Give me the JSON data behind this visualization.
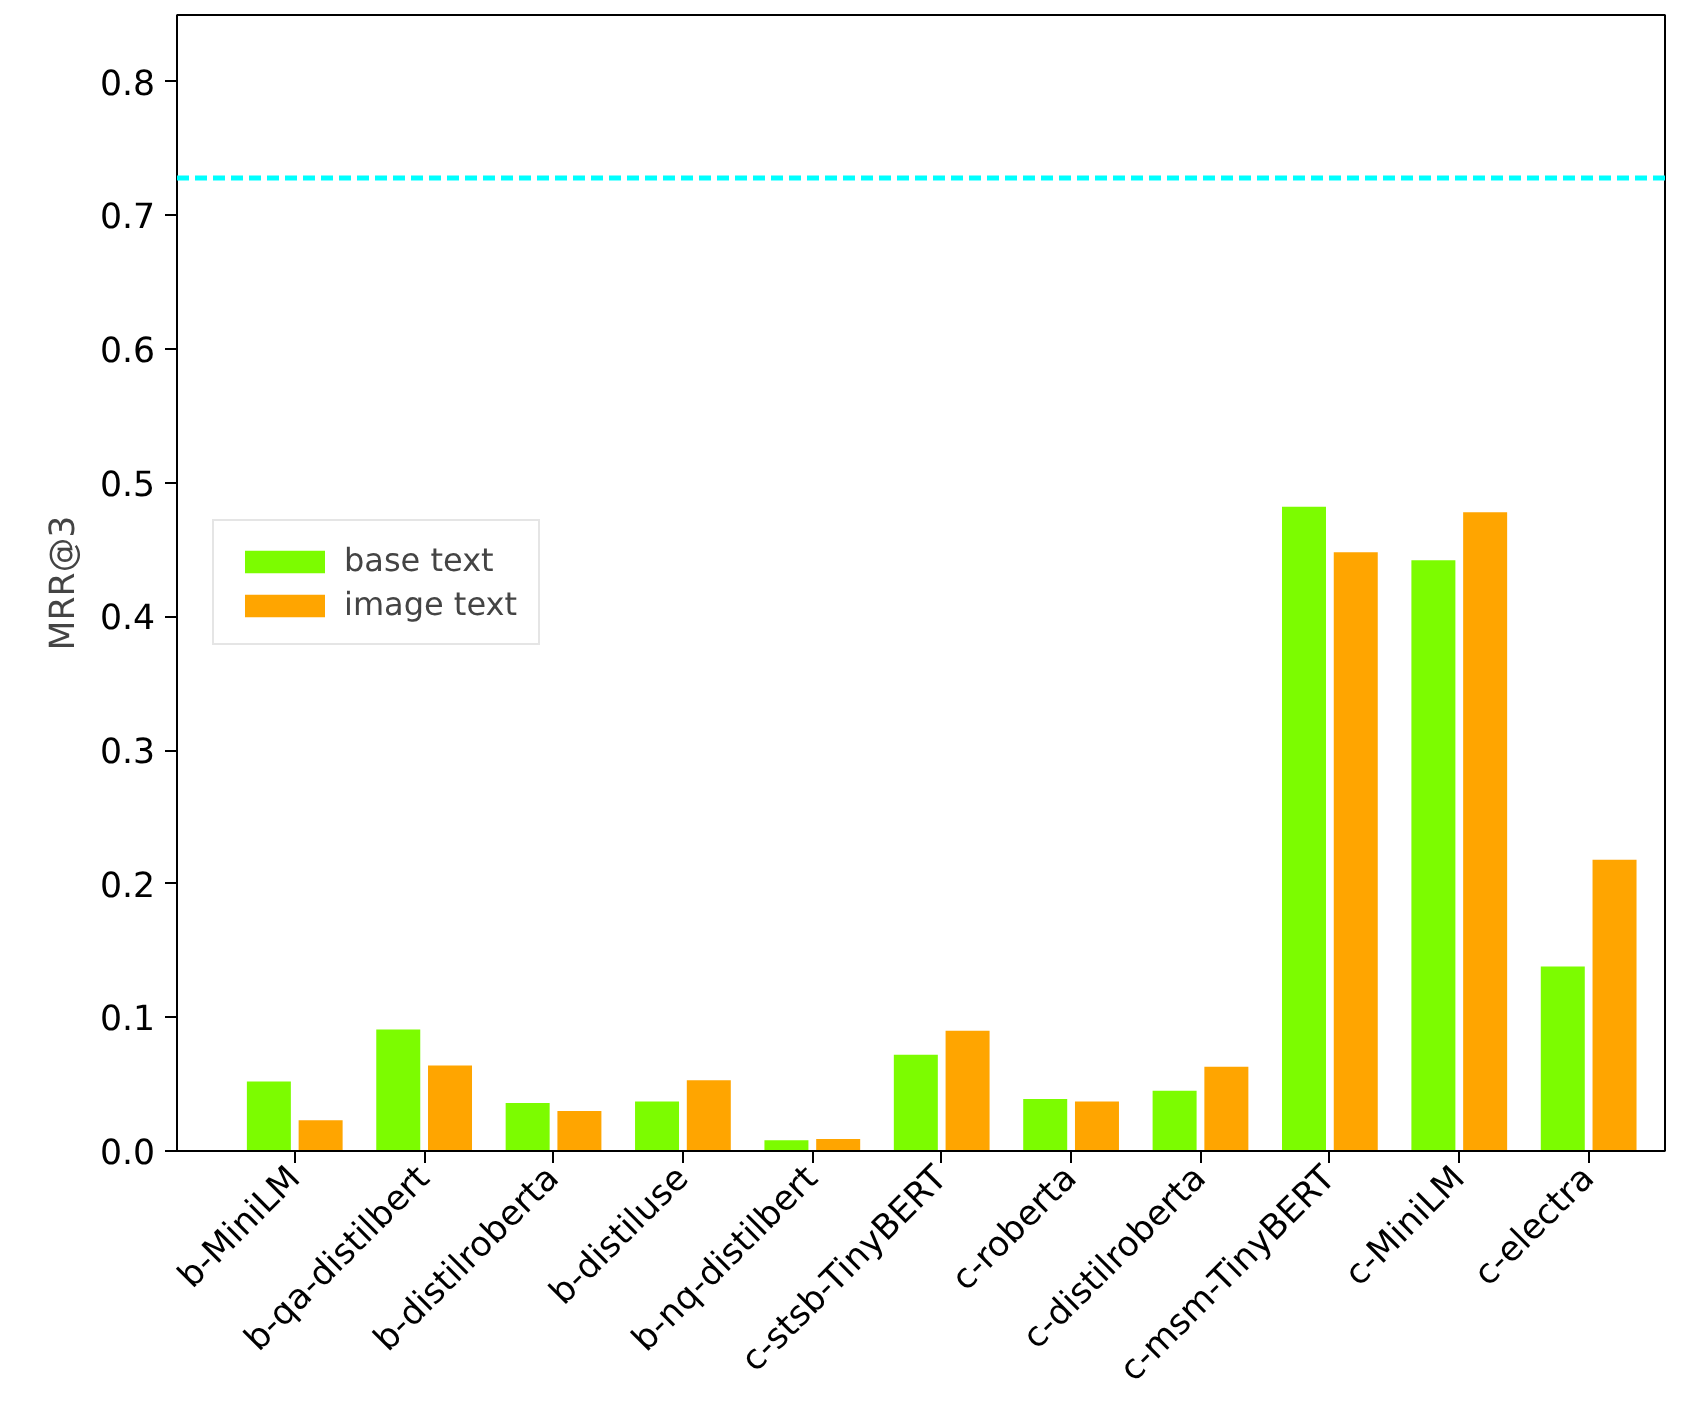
{
  "chart_data": {
    "type": "bar",
    "ylabel": "MRR@3",
    "categories": [
      "b-MiniLM",
      "b-qa-distilbert",
      "b-distilroberta",
      "b-distiluse",
      "b-nq-distilbert",
      "c-stsb-TinyBERT",
      "c-roberta",
      "c-distilroberta",
      "c-msm-TinyBERT",
      "c-MiniLM",
      "c-electra"
    ],
    "series": [
      {
        "name": "base text",
        "color": "#7cfc00",
        "values": [
          0.052,
          0.091,
          0.036,
          0.037,
          0.008,
          0.072,
          0.039,
          0.045,
          0.482,
          0.442,
          0.138
        ]
      },
      {
        "name": "image text",
        "color": "#ffa500",
        "values": [
          0.023,
          0.064,
          0.03,
          0.053,
          0.009,
          0.09,
          0.037,
          0.063,
          0.448,
          0.478,
          0.218
        ]
      }
    ],
    "ref_lines": [
      {
        "axis": "y",
        "value": 0.728,
        "color": "#00ffff",
        "line_style": "dashed"
      }
    ],
    "ylim": [
      0,
      0.85
    ],
    "yticks": [
      {
        "value": 0,
        "label": "0.0"
      },
      0.1,
      0.2,
      0.3,
      0.4,
      0.5,
      0.6,
      0.7,
      0.8
    ],
    "grid": false,
    "legend": "left"
  }
}
